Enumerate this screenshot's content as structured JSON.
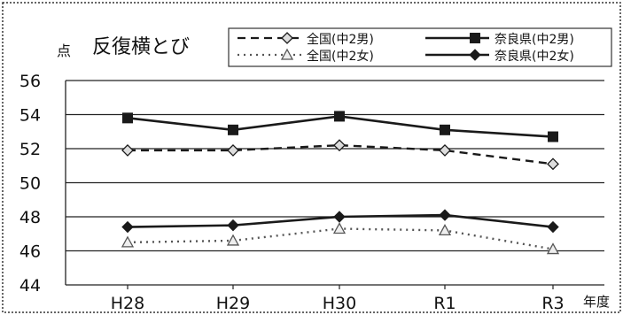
{
  "chart_data": {
    "type": "line",
    "title": "反復横とび",
    "ylabel": "点",
    "xlabel": "年度",
    "categories": [
      "H28",
      "H29",
      "H30",
      "R1",
      "R3"
    ],
    "ylim": [
      44,
      56
    ],
    "yticks": [
      44,
      46,
      48,
      50,
      52,
      54,
      56
    ],
    "grid": true,
    "legend_position": "top-right",
    "series": [
      {
        "name": "全国(中2男)",
        "values": [
          51.9,
          51.9,
          52.2,
          51.9,
          51.1
        ],
        "color": "#1a1a1a",
        "style": "dashed",
        "marker": "diamond-open"
      },
      {
        "name": "奈良県(中2男)",
        "values": [
          53.8,
          53.1,
          53.9,
          53.1,
          52.7
        ],
        "color": "#1a1a1a",
        "style": "solid",
        "marker": "square"
      },
      {
        "name": "全国(中2女)",
        "values": [
          46.5,
          46.6,
          47.3,
          47.2,
          46.1
        ],
        "color": "#555555",
        "style": "dotted",
        "marker": "triangle-open"
      },
      {
        "name": "奈良県(中2女)",
        "values": [
          47.4,
          47.5,
          48.0,
          48.1,
          47.4
        ],
        "color": "#1a1a1a",
        "style": "solid",
        "marker": "diamond"
      }
    ]
  }
}
